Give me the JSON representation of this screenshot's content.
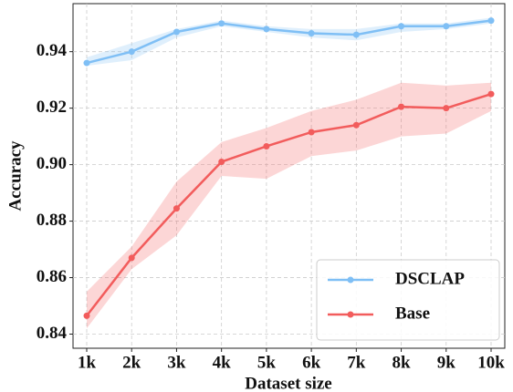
{
  "chart_data": {
    "type": "line",
    "x_label": "Dataset size",
    "y_label": "Accuracy",
    "categories": [
      "1k",
      "2k",
      "3k",
      "4k",
      "5k",
      "6k",
      "7k",
      "8k",
      "9k",
      "10k"
    ],
    "ylim": [
      0.835,
      0.957
    ],
    "yticks": [
      0.84,
      0.86,
      0.88,
      {
        "value": 0.9,
        "label": "0.90"
      },
      0.92,
      0.94
    ],
    "grid": true,
    "legend": "lower right",
    "series": [
      {
        "name": "DSCLAP",
        "color": "#7fbff5",
        "values": [
          0.936,
          0.94,
          0.947,
          0.95,
          0.948,
          0.9465,
          0.946,
          0.949,
          0.949,
          0.951
        ],
        "lower": [
          0.935,
          0.937,
          0.945,
          0.949,
          0.947,
          0.945,
          0.944,
          0.947,
          0.948,
          0.95
        ],
        "upper": [
          0.938,
          0.943,
          0.948,
          0.951,
          0.949,
          0.948,
          0.948,
          0.95,
          0.95,
          0.952
        ]
      },
      {
        "name": "Base",
        "color": "#f25c5c",
        "values": [
          0.8465,
          0.867,
          0.8845,
          0.901,
          0.9065,
          0.9115,
          0.914,
          0.9205,
          0.92,
          0.925
        ],
        "lower": [
          0.842,
          0.863,
          0.875,
          0.896,
          0.895,
          0.903,
          0.905,
          0.91,
          0.911,
          0.919
        ],
        "upper": [
          0.855,
          0.871,
          0.894,
          0.908,
          0.913,
          0.919,
          0.923,
          0.929,
          0.928,
          0.929
        ]
      }
    ]
  }
}
